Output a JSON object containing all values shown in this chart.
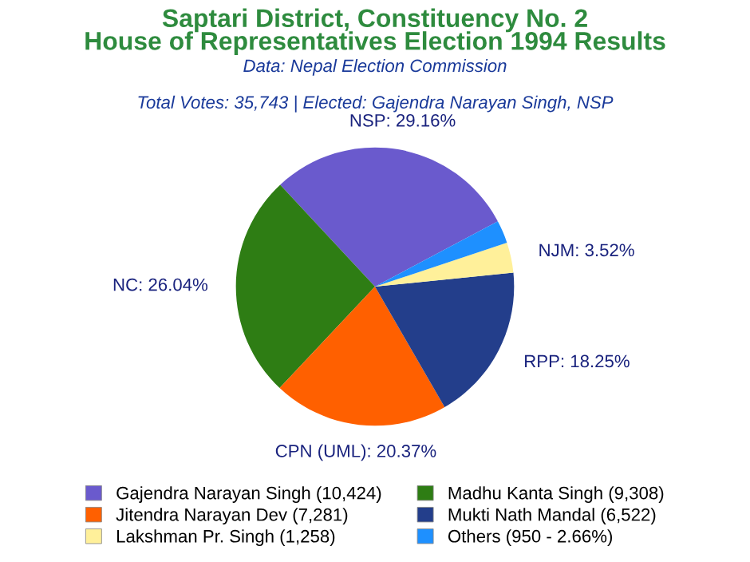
{
  "chart_data": {
    "type": "pie",
    "title": "Saptari District, Constituency No. 2\nHouse of Representatives Election 1994 Results",
    "subtitle": "Total Votes: 35,743 | Elected: Gajendra Narayan Singh, NSP",
    "annotations": [
      "Data: Nepal Election Commission"
    ],
    "categories": [
      "Gajendra Narayan Singh (10,424)",
      "Madhu Kanta Singh (9,308)",
      "Jitendra Narayan Dev (7,281)",
      "Mukti Nath Mandal (6,522)",
      "Lakshman Pr. Singh (1,258)",
      "Others (950 - 2.66%)"
    ],
    "values": [
      29.16,
      26.04,
      20.37,
      18.25,
      3.52,
      2.66
    ],
    "value_labels": [
      "NSP: 29.16%",
      "NC: 26.04%",
      "CPN (UML): 20.37%",
      "RPP: 18.25%",
      "NJM: 3.52%",
      null
    ],
    "colors": [
      "#6a5acd",
      "#2e7d14",
      "#ff6000",
      "#233e8b",
      "#fff09a",
      "#1e90ff"
    ],
    "legend": "bottom"
  }
}
